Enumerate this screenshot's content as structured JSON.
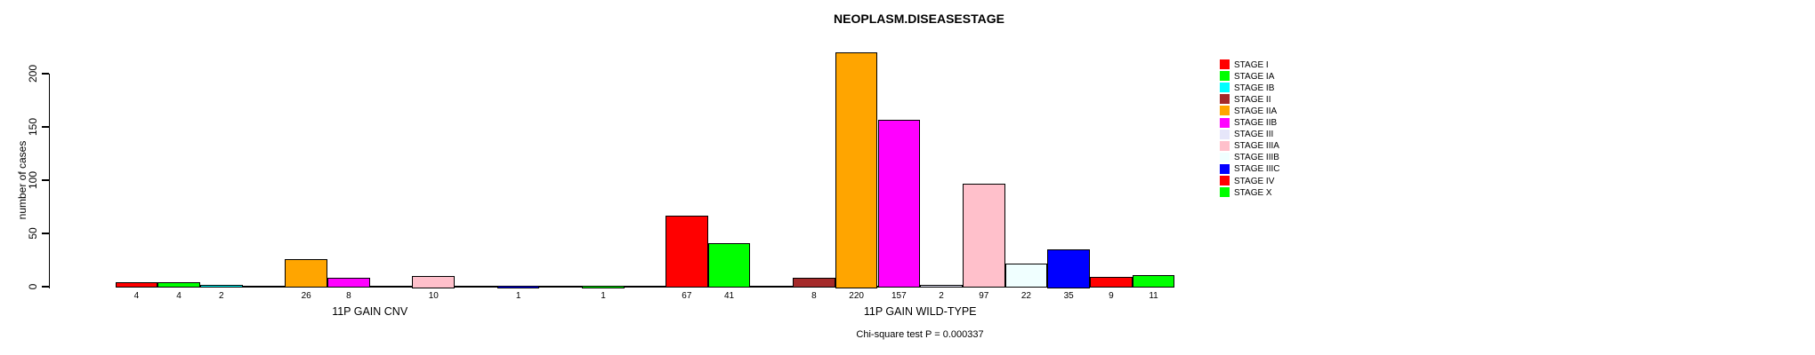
{
  "title": "NEOPLASM.DISEASESTAGE",
  "y_axis": {
    "label": "number of cases",
    "ticks": [
      0,
      50,
      100,
      150,
      200
    ]
  },
  "x_axis": {
    "group_labels": [
      "11P GAIN CNV",
      "11P GAIN WILD-TYPE"
    ]
  },
  "footer": {
    "text": "Chi-square test P = 0.000337"
  },
  "legend": {
    "position": "right",
    "entries": [
      {
        "label": "STAGE I",
        "color": "#FF0000"
      },
      {
        "label": "STAGE IA",
        "color": "#00FF00"
      },
      {
        "label": "STAGE IB",
        "color": "#00FFFF"
      },
      {
        "label": "STAGE II",
        "color": "#A52A2A"
      },
      {
        "label": "STAGE IIA",
        "color": "#FFA500"
      },
      {
        "label": "STAGE IIB",
        "color": "#FF00FF"
      },
      {
        "label": "STAGE III",
        "color": "#E6E6FA"
      },
      {
        "label": "STAGE IIIA",
        "color": "#FFC0CB"
      },
      {
        "label": "STAGE IIIB",
        "color": "#F0FFFF"
      },
      {
        "label": "STAGE IIIC",
        "color": "#0000FF"
      },
      {
        "label": "STAGE IV",
        "color": "#FF0000"
      },
      {
        "label": "STAGE X",
        "color": "#00FF00"
      }
    ]
  },
  "chart_data": {
    "type": "bar",
    "title": "NEOPLASM.DISEASESTAGE",
    "xlabel": "",
    "ylabel": "number of cases",
    "ylim": [
      0,
      220
    ],
    "yticks": [
      0,
      50,
      100,
      150,
      200
    ],
    "grid": false,
    "legend_position": "right",
    "bar_value_labels_below_axis": true,
    "categories": [
      "STAGE I",
      "STAGE IA",
      "STAGE IB",
      "STAGE II",
      "STAGE IIA",
      "STAGE IIB",
      "STAGE III",
      "STAGE IIIA",
      "STAGE IIIB",
      "STAGE IIIC",
      "STAGE IV",
      "STAGE X"
    ],
    "category_colors": [
      "#FF0000",
      "#00FF00",
      "#00FFFF",
      "#A52A2A",
      "#FFA500",
      "#FF00FF",
      "#E6E6FA",
      "#FFC0CB",
      "#F0FFFF",
      "#0000FF",
      "#FF0000",
      "#00FF00"
    ],
    "series": [
      {
        "name": "11P GAIN CNV",
        "values": [
          4,
          4,
          2,
          0,
          26,
          8,
          0,
          10,
          0,
          1,
          0,
          1
        ]
      },
      {
        "name": "11P GAIN WILD-TYPE",
        "values": [
          67,
          41,
          0,
          8,
          220,
          157,
          2,
          97,
          22,
          35,
          9,
          11
        ]
      }
    ],
    "annotation": "Chi-square test P = 0.000337"
  }
}
